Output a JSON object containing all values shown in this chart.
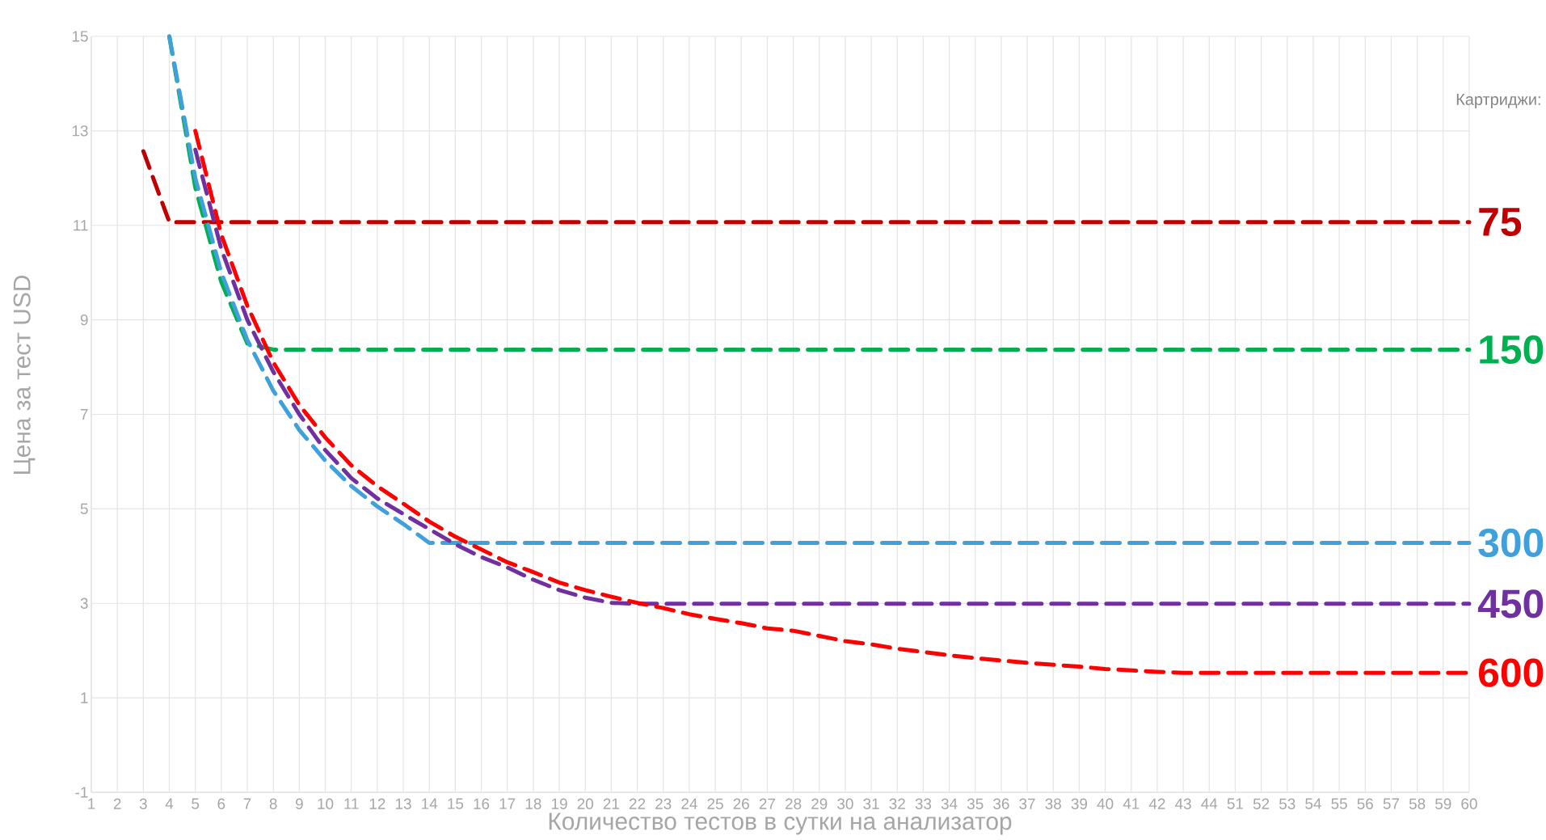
{
  "chart_data": {
    "type": "line",
    "xlabel": "Количество тестов в сутки на анализатор",
    "ylabel": "Цена за тест USD",
    "legend_title": "Картриджи:",
    "categories": [
      "1",
      "2",
      "3",
      "4",
      "5",
      "6",
      "7",
      "8",
      "9",
      "10",
      "11",
      "12",
      "13",
      "14",
      "15",
      "16",
      "17",
      "18",
      "19",
      "20",
      "21",
      "22",
      "23",
      "24",
      "25",
      "26",
      "27",
      "28",
      "29",
      "30",
      "31",
      "32",
      "33",
      "34",
      "35",
      "36",
      "37",
      "38",
      "39",
      "40",
      "41",
      "42",
      "43",
      "44",
      "51",
      "52",
      "53",
      "54",
      "55",
      "56",
      "57",
      "58",
      "59",
      "60"
    ],
    "ylim": [
      -1,
      15
    ],
    "yticks": [
      -1,
      1,
      3,
      5,
      7,
      9,
      11,
      13,
      15
    ],
    "grid": true,
    "line_style": "dashed",
    "series": [
      {
        "name": "75",
        "color": "#c00000",
        "values": [
          null,
          null,
          12.57,
          11.07,
          11.07,
          11.07,
          11.07,
          11.07,
          11.07,
          11.07,
          11.07,
          11.07,
          11.07,
          11.07,
          11.07,
          11.07,
          11.07,
          11.07,
          11.07,
          11.07,
          11.07,
          11.07,
          11.07,
          11.07,
          11.07,
          11.07,
          11.07,
          11.07,
          11.07,
          11.07,
          11.07,
          11.07,
          11.07,
          11.07,
          11.07,
          11.07,
          11.07,
          11.07,
          11.07,
          11.07,
          11.07,
          11.07,
          11.07,
          11.07,
          11.07,
          11.07,
          11.07,
          11.07,
          11.07,
          11.07,
          11.07,
          11.07,
          11.07,
          11.07
        ]
      },
      {
        "name": "150",
        "color": "#00b050",
        "values": [
          null,
          null,
          null,
          15.0,
          11.8,
          9.8,
          8.5,
          8.37,
          8.37,
          8.37,
          8.37,
          8.37,
          8.37,
          8.37,
          8.37,
          8.37,
          8.37,
          8.37,
          8.37,
          8.37,
          8.37,
          8.37,
          8.37,
          8.37,
          8.37,
          8.37,
          8.37,
          8.37,
          8.37,
          8.37,
          8.37,
          8.37,
          8.37,
          8.37,
          8.37,
          8.37,
          8.37,
          8.37,
          8.37,
          8.37,
          8.37,
          8.37,
          8.37,
          8.37,
          8.37,
          8.37,
          8.37,
          8.37,
          8.37,
          8.37,
          8.37,
          8.37,
          8.37,
          8.37
        ]
      },
      {
        "name": "300",
        "color": "#3fa0dc",
        "values": [
          null,
          null,
          null,
          15.0,
          12.0,
          10.0,
          8.57,
          7.5,
          6.67,
          6.02,
          5.48,
          5.05,
          4.68,
          4.28,
          4.28,
          4.28,
          4.28,
          4.28,
          4.28,
          4.28,
          4.28,
          4.28,
          4.28,
          4.28,
          4.28,
          4.28,
          4.28,
          4.28,
          4.28,
          4.28,
          4.28,
          4.28,
          4.28,
          4.28,
          4.28,
          4.28,
          4.28,
          4.28,
          4.28,
          4.28,
          4.28,
          4.28,
          4.28,
          4.28,
          4.28,
          4.28,
          4.28,
          4.28,
          4.28,
          4.28,
          4.28,
          4.28,
          4.28,
          4.28
        ]
      },
      {
        "name": "450",
        "color": "#7030a0",
        "values": [
          null,
          null,
          null,
          null,
          12.6,
          10.5,
          9.0,
          7.9,
          7.0,
          6.24,
          5.65,
          5.22,
          4.89,
          4.57,
          4.25,
          3.98,
          3.76,
          3.5,
          3.28,
          3.12,
          3.01,
          2.99,
          2.99,
          2.99,
          2.99,
          2.99,
          2.99,
          2.99,
          2.99,
          2.99,
          2.99,
          2.99,
          2.99,
          2.99,
          2.99,
          2.99,
          2.99,
          2.99,
          2.99,
          2.99,
          2.99,
          2.99,
          2.99,
          2.99,
          2.99,
          2.99,
          2.99,
          2.99,
          2.99,
          2.99,
          2.99,
          2.99,
          2.99,
          2.99
        ]
      },
      {
        "name": "600",
        "color": "#ff0000",
        "values": [
          null,
          null,
          null,
          null,
          13.0,
          10.8,
          9.3,
          8.1,
          7.2,
          6.51,
          5.92,
          5.48,
          5.11,
          4.73,
          4.41,
          4.14,
          3.87,
          3.66,
          3.44,
          3.28,
          3.14,
          3.01,
          2.9,
          2.77,
          2.67,
          2.58,
          2.47,
          2.42,
          2.31,
          2.2,
          2.13,
          2.04,
          1.97,
          1.9,
          1.84,
          1.79,
          1.74,
          1.7,
          1.66,
          1.61,
          1.58,
          1.55,
          1.53,
          1.53,
          1.53,
          1.53,
          1.53,
          1.53,
          1.53,
          1.53,
          1.53,
          1.53,
          1.53,
          1.53
        ]
      }
    ]
  }
}
